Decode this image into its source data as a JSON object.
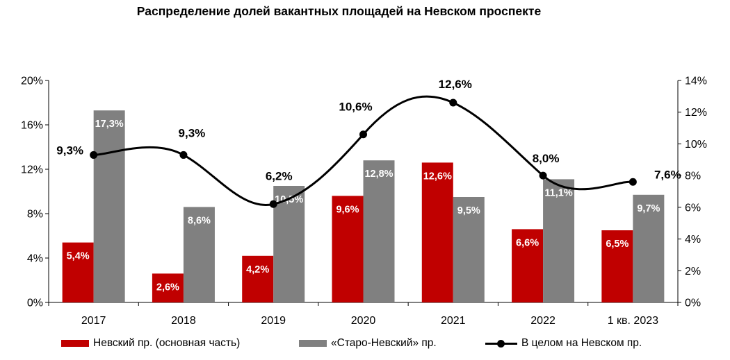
{
  "chart_data": {
    "type": "bar",
    "title": "Распределение долей вакантных площадей на Невском проспекте",
    "categories": [
      "2017",
      "2018",
      "2019",
      "2020",
      "2021",
      "2022",
      "1 кв. 2023"
    ],
    "y_left": {
      "range": [
        0,
        20
      ],
      "ticks": [
        "0%",
        "4%",
        "8%",
        "12%",
        "16%",
        "20%"
      ],
      "tick_values": [
        0,
        4,
        8,
        12,
        16,
        20
      ]
    },
    "y_right": {
      "range": [
        0,
        14
      ],
      "ticks": [
        "0%",
        "2%",
        "4%",
        "6%",
        "8%",
        "10%",
        "12%",
        "14%"
      ],
      "tick_values": [
        0,
        2,
        4,
        6,
        8,
        10,
        12,
        14
      ]
    },
    "grid": false,
    "legend_position": "bottom",
    "series": [
      {
        "name": "Невский пр. (основная часть)",
        "kind": "bar",
        "axis": "left",
        "color": "#c00000",
        "values": [
          5.4,
          2.6,
          4.2,
          9.6,
          12.6,
          6.6,
          6.5
        ],
        "labels": [
          "5,4%",
          "2,6%",
          "4,2%",
          "9,6%",
          "12,6%",
          "6,6%",
          "6,5%"
        ]
      },
      {
        "name": "«Старо-Невский» пр.",
        "kind": "bar",
        "axis": "left",
        "color": "#808080",
        "values": [
          17.3,
          8.6,
          10.5,
          12.8,
          9.5,
          11.1,
          9.7
        ],
        "labels": [
          "17,3%",
          "8,6%",
          "10,5%",
          "12,8%",
          "9,5%",
          "11,1%",
          "9,7%"
        ]
      },
      {
        "name": "В целом на Невском пр.",
        "kind": "line",
        "axis": "right",
        "color": "#000000",
        "values": [
          9.3,
          9.3,
          6.2,
          10.6,
          12.6,
          8.0,
          7.6
        ],
        "labels": [
          "9,3%",
          "9,3%",
          "6,2%",
          "10,6%",
          "12,6%",
          "8,0%",
          "7,6%"
        ]
      }
    ]
  }
}
